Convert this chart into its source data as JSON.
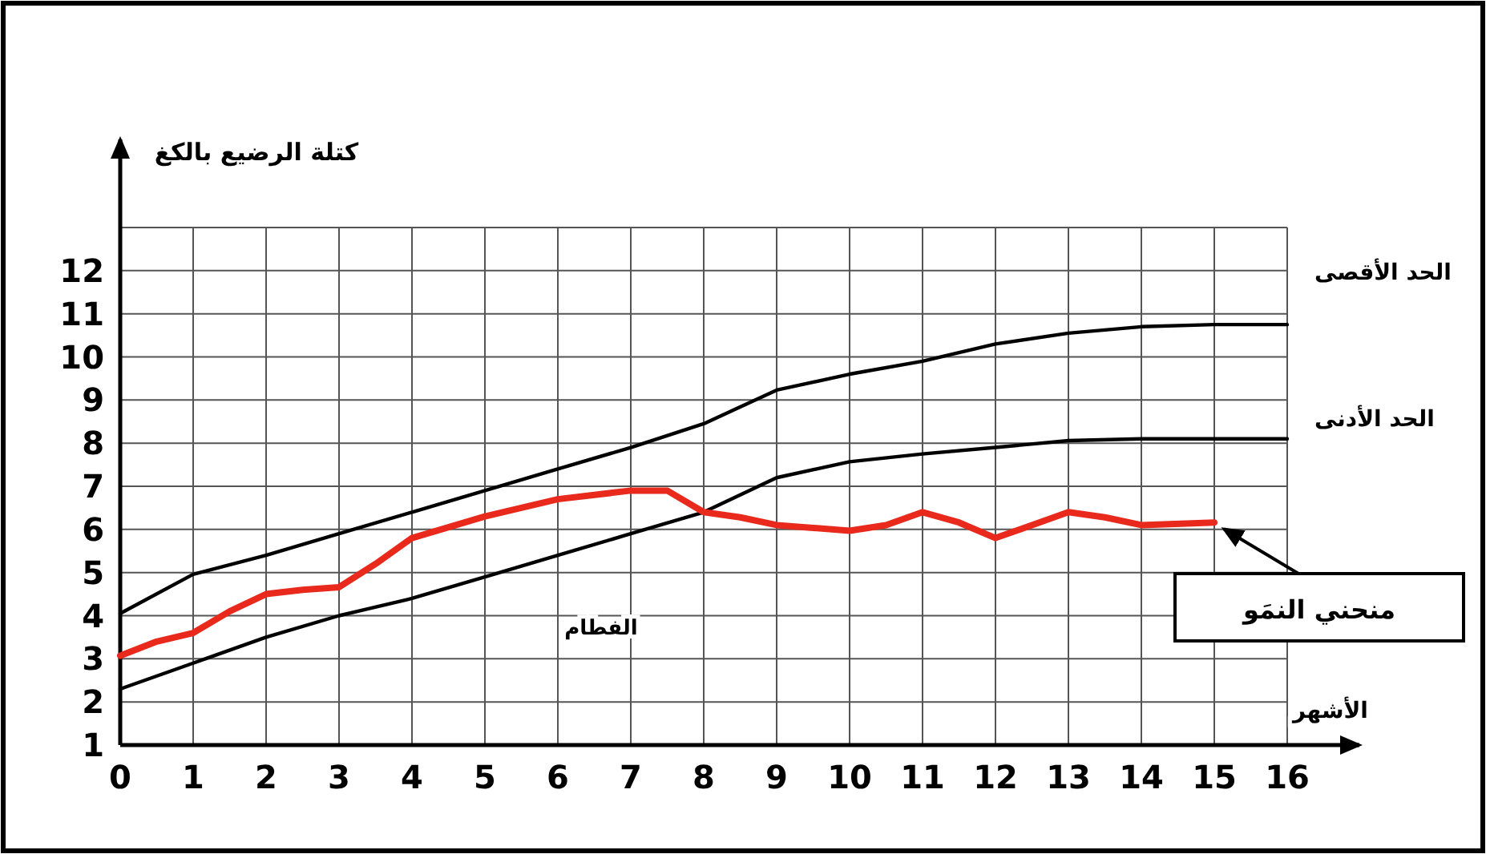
{
  "chart_data": {
    "type": "line",
    "xlabel": "الأشهر",
    "ylabel": "كتلة الرضيع بالكغ",
    "xlim": [
      0,
      16
    ],
    "xticks": [
      0,
      1,
      2,
      3,
      4,
      5,
      6,
      7,
      8,
      9,
      10,
      11,
      12,
      13,
      14,
      15,
      16
    ],
    "ylim": [
      1,
      13
    ],
    "yticks": [
      1,
      2,
      3,
      4,
      5,
      6,
      7,
      8,
      9,
      10,
      11,
      12,
      {
        "value": 13,
        "label": null
      }
    ],
    "grid": true,
    "series": [
      {
        "name": "الحد الأقصى",
        "color": "#000000",
        "x": [
          0,
          1,
          2,
          3,
          4,
          5,
          6,
          7,
          8,
          9,
          10,
          11,
          12,
          13,
          14,
          15,
          16
        ],
        "values": [
          4.05,
          4.96,
          5.4,
          5.9,
          6.4,
          6.9,
          7.4,
          7.9,
          8.45,
          9.23,
          9.6,
          9.9,
          10.3,
          10.55,
          10.7,
          10.75,
          10.75
        ]
      },
      {
        "name": "الحد الأدنى",
        "color": "#000000",
        "x": [
          0,
          1,
          2,
          3,
          4,
          5,
          6,
          7,
          8,
          9,
          10,
          11,
          12,
          13,
          14,
          15,
          16
        ],
        "values": [
          2.3,
          2.9,
          3.5,
          4.0,
          4.4,
          4.9,
          5.4,
          5.9,
          6.4,
          7.2,
          7.57,
          7.75,
          7.9,
          8.06,
          8.1,
          8.1,
          8.1
        ]
      },
      {
        "color": "#e8291c",
        "x": [
          0,
          0.5,
          1,
          1.5,
          2,
          2.5,
          3,
          3.5,
          4,
          5,
          6,
          7,
          7.5,
          8,
          8.5,
          9,
          10,
          10.5,
          11,
          11.5,
          12,
          12.5,
          13,
          13.5,
          14,
          15
        ],
        "values": [
          3.07,
          3.4,
          3.6,
          4.1,
          4.5,
          4.6,
          4.66,
          5.2,
          5.8,
          6.3,
          6.7,
          6.9,
          6.9,
          6.4,
          6.28,
          6.1,
          5.97,
          6.1,
          6.4,
          6.16,
          5.8,
          6.1,
          6.4,
          6.28,
          6.1,
          6.16
        ]
      }
    ],
    "annotations": [
      "الفطام",
      {
        "text": "منحني النمَو",
        "x": 15,
        "y": 6.16
      }
    ]
  }
}
